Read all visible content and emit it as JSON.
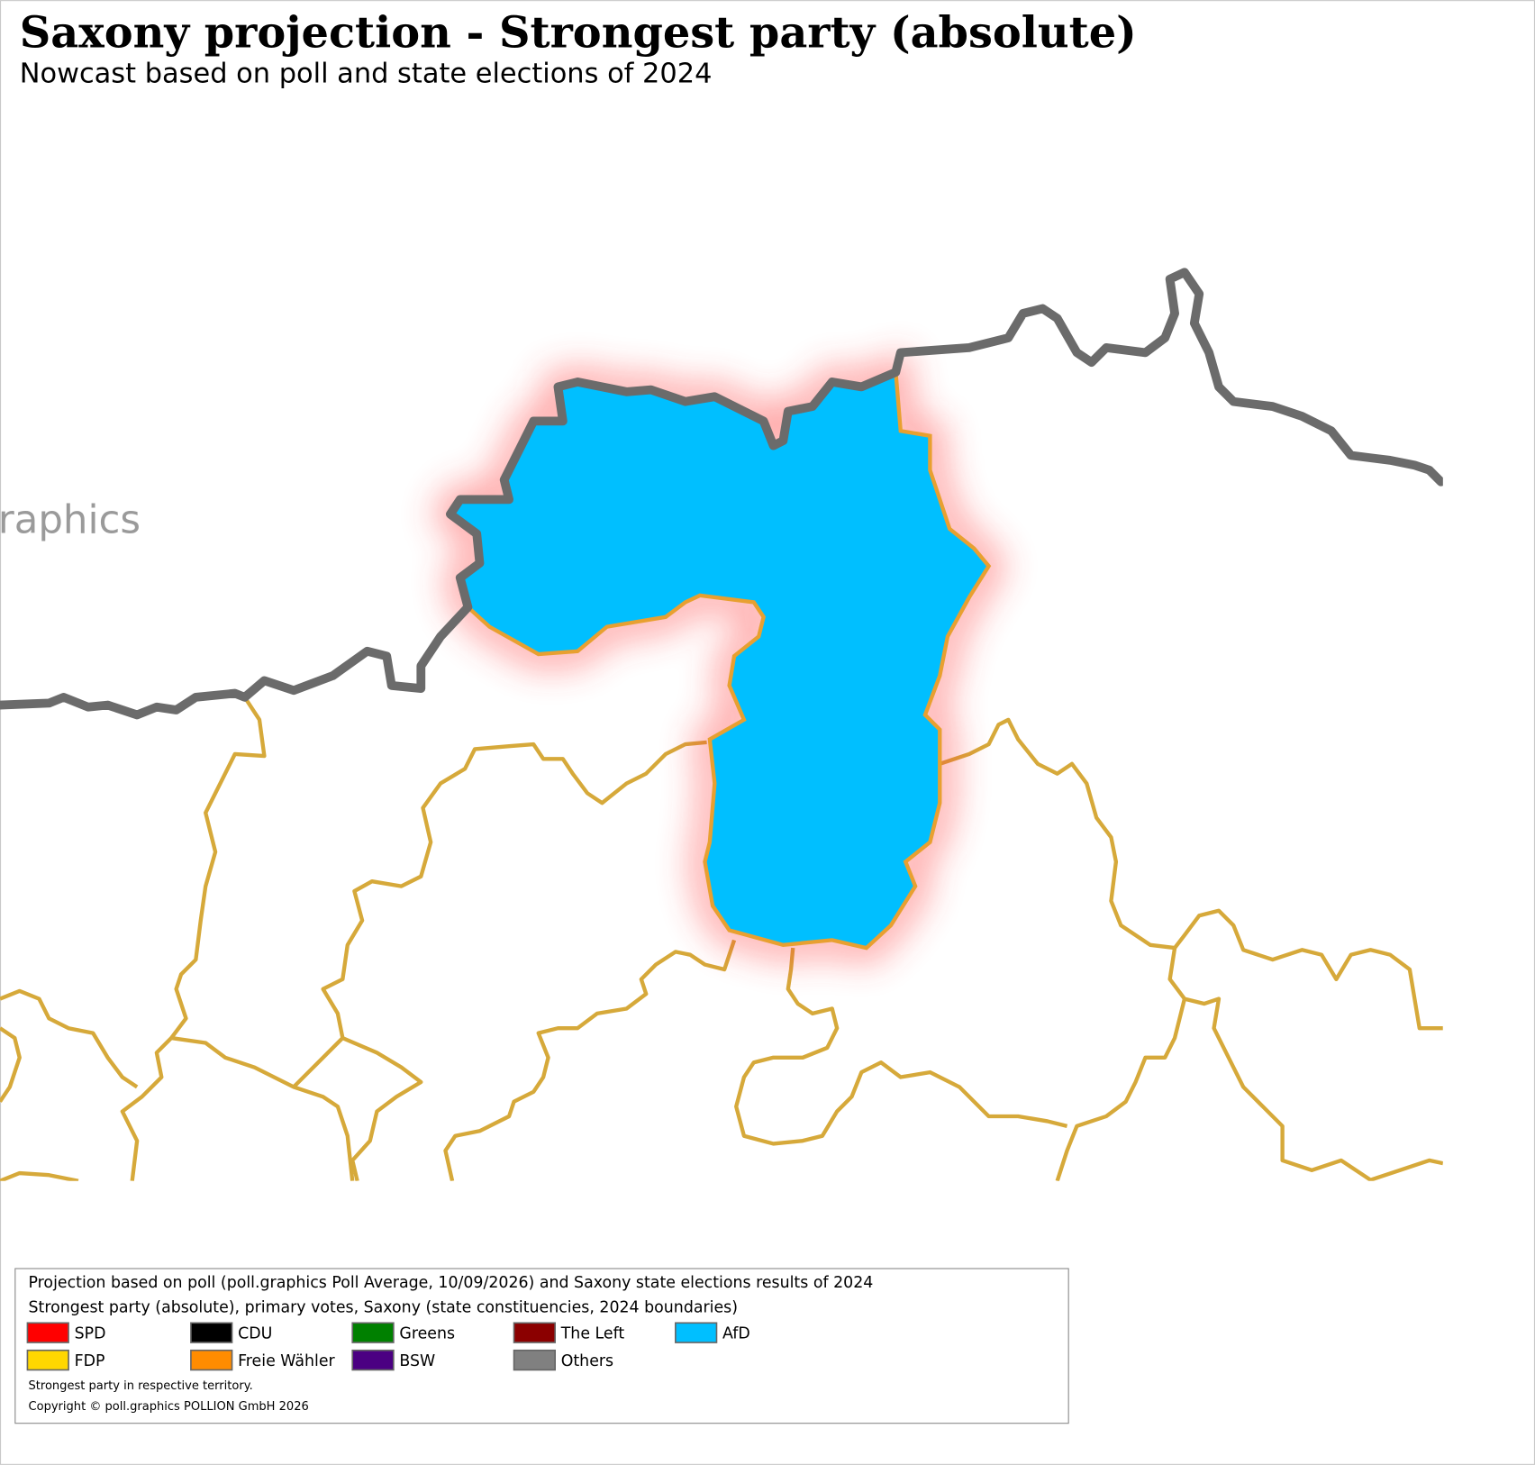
{
  "header": {
    "title": "Saxony projection - Strongest party (absolute)",
    "subtitle": "Nowcast based on poll and state elections of 2024"
  },
  "map": {
    "watermark": "raphics"
  },
  "legend": {
    "lines": [
      "Projection based on poll (poll.graphics Poll Average, 10/09/2026) and Saxony state elections results of 2024",
      "Strongest party (absolute), primary votes, Saxony (state constituencies, 2024 boundaries)"
    ],
    "items": [
      {
        "name": "SPD",
        "color": "#ff0000"
      },
      {
        "name": "CDU",
        "color": "#000000"
      },
      {
        "name": "Greens",
        "color": "#008000"
      },
      {
        "name": "The Left",
        "color": "#8b0000"
      },
      {
        "name": "AfD",
        "color": "#00bfff"
      },
      {
        "name": "FDP",
        "color": "#ffd700"
      },
      {
        "name": "Freie Wähler",
        "color": "#ff8c00"
      },
      {
        "name": "BSW",
        "color": "#4b0082"
      },
      {
        "name": "Others",
        "color": "#808080"
      }
    ],
    "notes": [
      "Strongest party in respective territory.",
      "Copyright © poll.graphics POLLION GmbH 2026"
    ]
  }
}
